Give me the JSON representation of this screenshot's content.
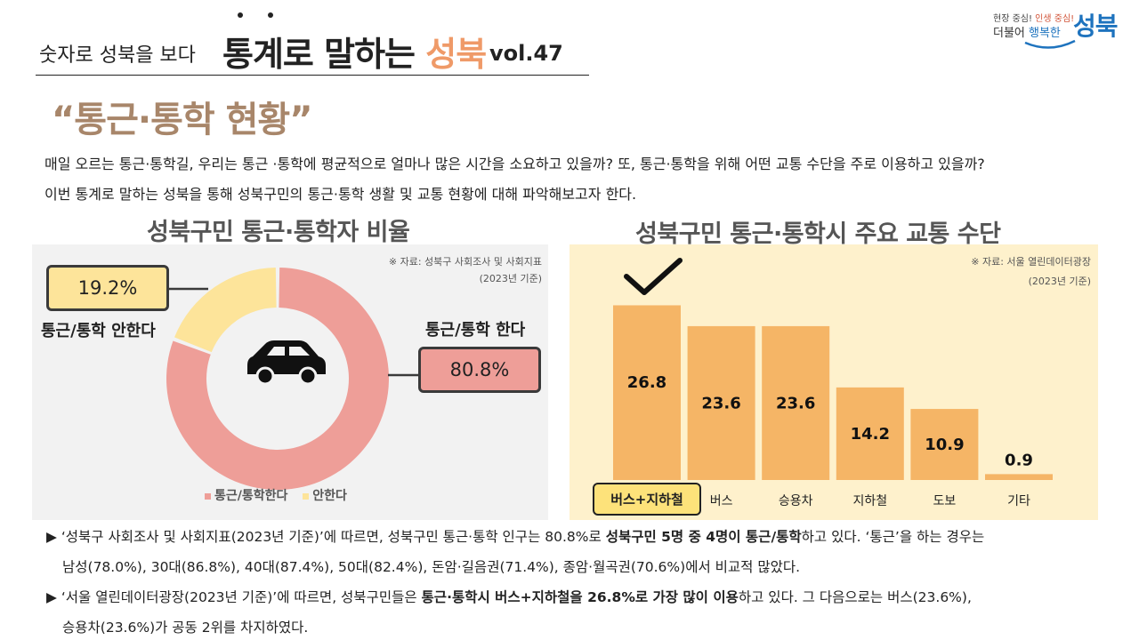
{
  "header": {
    "subtitle": "숫자로 성북을 보다",
    "title_main": "통계로 말하는 ",
    "title_accent": "성북",
    "vol": "vol.47"
  },
  "logo": {
    "slogan_1": "현장 중심!",
    "slogan_2": " 인생 중심!",
    "text_1": "더불어 ",
    "text_2": "행복한",
    "name": "성북"
  },
  "title": "“통근·통학 현황”",
  "intro": [
    "매일 오르는 통근·통학길, 우리는 통근 ·통학에 평균적으로 얼마나 많은 시간을 소요하고 있을까? 또, 통근·통학을 위해 어떤 교통 수단을 주로 이용하고 있을까?",
    "이번 통계로 말하는 성북을 통해 성북구민의 통근·통학 생활 및 교통 현황에 대해 파악해보고자 한다."
  ],
  "left_chart": {
    "section_title": "성북구민 통근·통학자 비율",
    "source_line1": "※ 자료: 성북구 사회조사 및 사회지표",
    "source_line2": "(2023년 기준)",
    "icon": "car-icon",
    "label_no": "통근/통학 안한다",
    "label_yes": "통근/통학 한다",
    "value_no_text": "19.2%",
    "value_yes_text": "80.8%",
    "legend_yes": "통근/통학한다",
    "legend_no": "안한다"
  },
  "right_chart": {
    "section_title": "성북구민 통근·통학시 주요 교통 수단",
    "source_line1": "※ 자료: 서울 열린데이터광장",
    "source_line2": "(2023년 기준)",
    "icon": "check-icon",
    "highlight_label": "버스+지하철"
  },
  "chart_data": [
    {
      "type": "pie",
      "categories": [
        "통근/통학한다",
        "안한다"
      ],
      "values": [
        80.8,
        19.2
      ],
      "colors": [
        "#ee9e98",
        "#fde49a"
      ],
      "legend": "bottom"
    },
    {
      "type": "bar",
      "categories": [
        "버스+지하철",
        "버스",
        "승용차",
        "지하철",
        "도보",
        "기타"
      ],
      "values": [
        26.8,
        23.6,
        23.6,
        14.2,
        10.9,
        0.9
      ],
      "bar_color": "#f5b566",
      "highlight_color": "#fde27a",
      "ylim": [
        0,
        30
      ]
    }
  ],
  "bottom": {
    "line1_a": "‘성북구 사회조사 및 사회지표(2023년 기준)’에 따르면, 성북구민 통근·통학 인구는 80.8%로 ",
    "line1_b": "성북구민 5명 중 4명이 통근/통학",
    "line1_c": "하고 있다. ‘통근’을 하는 경우는",
    "line2": "남성(78.0%), 30대(86.8%), 40대(87.4%), 50대(82.4%), 돈암·길음권(71.4%), 종암·월곡권(70.6%)에서 비교적 많았다.",
    "line3_a": "‘서울 열린데이터광장(2023년 기준)’에 따르면, 성북구민들은 ",
    "line3_b": "통근·통학시 버스+지하철을 26.8%로 가장 많이 이용",
    "line3_c": "하고 있다. 그 다음으로는 버스(23.6%),",
    "line4": "승용차(23.6%)가 공동 2위를 차지하였다."
  }
}
